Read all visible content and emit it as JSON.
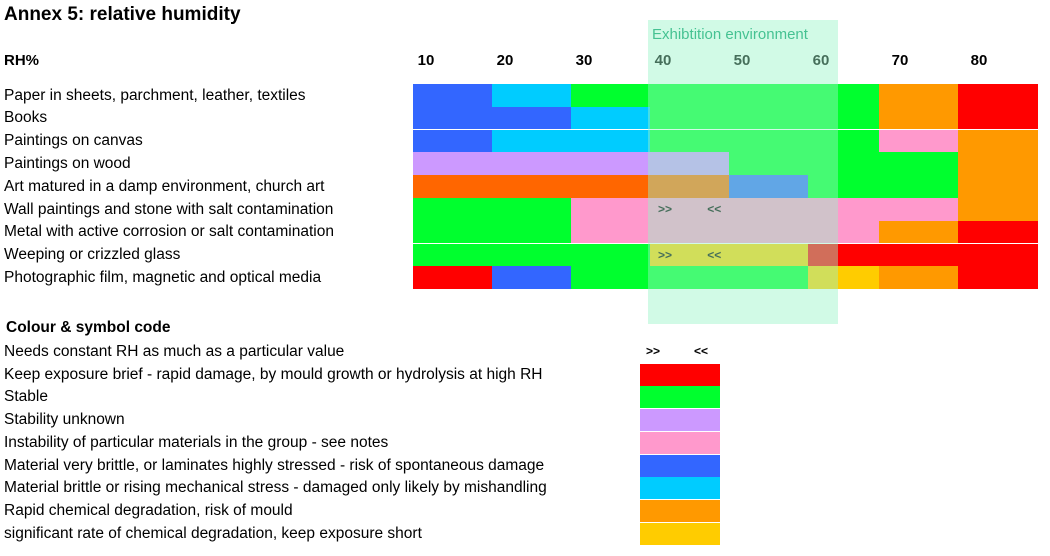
{
  "title": "Annex 5: relative humidity",
  "axis_label": "RH%",
  "exhibition_label": "Exhibtition environment",
  "colors": {
    "red": "#ff0000",
    "green": "#00ff2e",
    "purple": "#cc99ff",
    "pink": "#ff99cc",
    "blue": "#3366ff",
    "cyan": "#00ccff",
    "orange": "#ff9900",
    "yellow": "#ffcc00",
    "darkorange": "#ff6600",
    "exhibition_band": "#98f5c8"
  },
  "chart_data": {
    "type": "table",
    "xlabel": "RH%",
    "x_ticks": [
      10,
      20,
      30,
      40,
      50,
      60,
      70,
      80
    ],
    "exhibition_range": [
      40,
      62
    ],
    "rows": [
      {
        "label": "Paper in sheets, parchment, leather, textiles",
        "segments": [
          {
            "from": 10,
            "to": 20,
            "color": "#3366ff"
          },
          {
            "from": 20,
            "to": 30,
            "color": "#00ccff"
          },
          {
            "from": 30,
            "to": 69,
            "color": "#00ff2e"
          },
          {
            "from": 69,
            "to": 79,
            "color": "#ff9900"
          },
          {
            "from": 79,
            "to": 89,
            "color": "#ff0000"
          }
        ]
      },
      {
        "label": "Books",
        "segments": [
          {
            "from": 10,
            "to": 30,
            "color": "#3366ff"
          },
          {
            "from": 30,
            "to": 40,
            "color": "#00ccff"
          },
          {
            "from": 40,
            "to": 69,
            "color": "#00ff2e"
          },
          {
            "from": 69,
            "to": 79,
            "color": "#ff9900"
          },
          {
            "from": 79,
            "to": 89,
            "color": "#ff0000"
          }
        ]
      },
      {
        "label": "Paintings on canvas",
        "segments": [
          {
            "from": 10,
            "to": 20,
            "color": "#3366ff"
          },
          {
            "from": 20,
            "to": 40,
            "color": "#00ccff"
          },
          {
            "from": 40,
            "to": 69,
            "color": "#00ff2e"
          },
          {
            "from": 69,
            "to": 79,
            "color": "#ff99cc"
          },
          {
            "from": 79,
            "to": 89,
            "color": "#ff9900"
          }
        ]
      },
      {
        "label": "Paintings on wood",
        "segments": [
          {
            "from": 10,
            "to": 50,
            "color": "#cc99ff"
          },
          {
            "from": 50,
            "to": 79,
            "color": "#00ff2e"
          },
          {
            "from": 79,
            "to": 89,
            "color": "#ff9900"
          }
        ]
      },
      {
        "label": "Art matured in a damp environment, church art",
        "segments": [
          {
            "from": 10,
            "to": 50,
            "color": "#ff6600"
          },
          {
            "from": 50,
            "to": 60,
            "color": "#3366ff"
          },
          {
            "from": 60,
            "to": 79,
            "color": "#00ff2e"
          },
          {
            "from": 79,
            "to": 89,
            "color": "#ff9900"
          }
        ]
      },
      {
        "label": "Wall paintings and stone with salt contamination",
        "segments": [
          {
            "from": 10,
            "to": 30,
            "color": "#00ff2e"
          },
          {
            "from": 30,
            "to": 79,
            "color": "#ff99cc"
          },
          {
            "from": 79,
            "to": 89,
            "color": "#ff9900"
          }
        ],
        "symbols": {
          "left": 40,
          "right": 47
        }
      },
      {
        "label": "Metal with active corrosion or salt contamination",
        "segments": [
          {
            "from": 10,
            "to": 30,
            "color": "#00ff2e"
          },
          {
            "from": 30,
            "to": 69,
            "color": "#ff99cc"
          },
          {
            "from": 69,
            "to": 79,
            "color": "#ff9900"
          },
          {
            "from": 79,
            "to": 89,
            "color": "#ff0000"
          }
        ]
      },
      {
        "label": "Weeping or crizzled glass",
        "segments": [
          {
            "from": 10,
            "to": 40,
            "color": "#00ff2e"
          },
          {
            "from": 40,
            "to": 60,
            "color": "#ffcc00"
          },
          {
            "from": 60,
            "to": 89,
            "color": "#ff0000"
          }
        ],
        "symbols": {
          "left": 40,
          "right": 47
        }
      },
      {
        "label": "Photographic film, magnetic and optical media",
        "segments": [
          {
            "from": 10,
            "to": 20,
            "color": "#ff0000"
          },
          {
            "from": 20,
            "to": 30,
            "color": "#3366ff"
          },
          {
            "from": 30,
            "to": 60,
            "color": "#00ff2e"
          },
          {
            "from": 60,
            "to": 64,
            "color": "#ffcc00"
          },
          {
            "from": 64,
            "to": 69,
            "color": "#ffcc00"
          },
          {
            "from": 69,
            "to": 79,
            "color": "#ff9900"
          },
          {
            "from": 79,
            "to": 89,
            "color": "#ff0000"
          }
        ]
      }
    ]
  },
  "legend": {
    "title": "Colour & symbol code",
    "symbol_left": ">>",
    "symbol_right": "<<",
    "items": [
      {
        "label": "Needs constant RH as much as a particular value",
        "color": null
      },
      {
        "label": "Keep exposure brief - rapid damage, by mould growth or hydrolysis at high RH",
        "color": "#ff0000"
      },
      {
        "label": "Stable",
        "color": "#00ff2e"
      },
      {
        "label": "Stability unknown",
        "color": "#cc99ff"
      },
      {
        "label": "Instability of particular materials in the group - see notes",
        "color": "#ff99cc"
      },
      {
        "label": "Material very brittle, or laminates highly stressed - risk of spontaneous damage",
        "color": "#3366ff"
      },
      {
        "label": "Material brittle or rising mechanical stress - damaged only likely by mishandling",
        "color": "#00ccff"
      },
      {
        "label": "Rapid chemical degradation, risk of mould",
        "color": "#ff9900"
      },
      {
        "label": "significant rate of chemical degradation, keep exposure short",
        "color": "#ffcc00"
      }
    ]
  }
}
